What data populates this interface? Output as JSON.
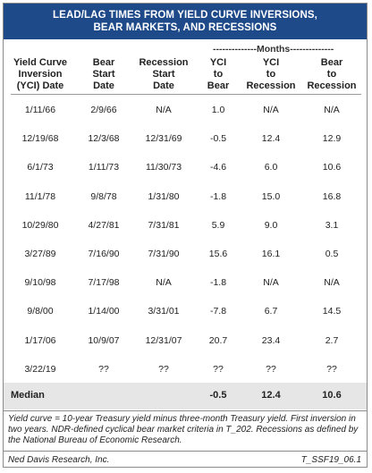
{
  "title": {
    "line1": "LEAD/LAG TIMES FROM YIELD CURVE INVERSIONS,",
    "line2": "BEAR MARKETS, AND RECESSIONS"
  },
  "months_label": "--------------Months--------------",
  "columns": [
    [
      "Yield Curve",
      "Inversion",
      "(YCI) Date"
    ],
    [
      "Bear",
      "Start",
      "Date"
    ],
    [
      "Recession",
      "Start",
      "Date"
    ],
    [
      "YCI",
      "to",
      "Bear"
    ],
    [
      "YCI",
      "to",
      "Recession"
    ],
    [
      "Bear",
      "to",
      "Recession"
    ]
  ],
  "rows": [
    [
      "1/11/66",
      "2/9/66",
      "N/A",
      "1.0",
      "N/A",
      "N/A"
    ],
    [
      "12/19/68",
      "12/3/68",
      "12/31/69",
      "-0.5",
      "12.4",
      "12.9"
    ],
    [
      "6/1/73",
      "1/11/73",
      "11/30/73",
      "-4.6",
      "6.0",
      "10.6"
    ],
    [
      "11/1/78",
      "9/8/78",
      "1/31/80",
      "-1.8",
      "15.0",
      "16.8"
    ],
    [
      "10/29/80",
      "4/27/81",
      "7/31/81",
      "5.9",
      "9.0",
      "3.1"
    ],
    [
      "3/27/89",
      "7/16/90",
      "7/31/90",
      "15.6",
      "16.1",
      "0.5"
    ],
    [
      "9/10/98",
      "7/17/98",
      "N/A",
      "-1.8",
      "N/A",
      "N/A"
    ],
    [
      "9/8/00",
      "1/14/00",
      "3/31/01",
      "-7.8",
      "6.7",
      "14.5"
    ],
    [
      "1/17/06",
      "10/9/07",
      "12/31/07",
      "20.7",
      "23.4",
      "2.7"
    ],
    [
      "3/22/19",
      "??",
      "??",
      "??",
      "??",
      "??"
    ]
  ],
  "median": {
    "label": "Median",
    "yci_to_bear": "-0.5",
    "yci_to_recession": "12.4",
    "bear_to_recession": "10.6"
  },
  "footnote": "Yield curve = 10-year Treasury yield minus three-month Treasury yield. First inversion in two years.  NDR-defined cyclical bear market criteria in T_202. Recessions as defined by the National Bureau of Economic Research.",
  "footer": {
    "source": "Ned Davis Research, Inc.",
    "code": "T_SSF19_06.1"
  },
  "colors": {
    "title_bg": "#1e4a8a",
    "median_bg": "#e6e6e6"
  }
}
